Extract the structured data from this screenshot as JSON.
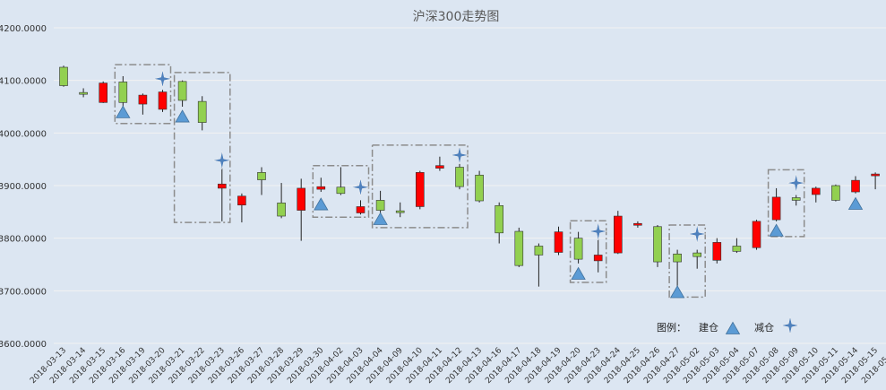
{
  "chart_data": {
    "type": "candlestick",
    "title": "沪深300走势图",
    "xlabel": "",
    "ylabel": "",
    "ylim": [
      3600,
      4200
    ],
    "yticks": [
      "3600.0000",
      "3700.0000",
      "3800.0000",
      "3900.0000",
      "4000.0000",
      "4100.0000",
      "4200.0000"
    ],
    "grid": true,
    "legend": {
      "position": "bottom-right",
      "title": "图例：",
      "entries": [
        "建仓",
        "减仓"
      ]
    },
    "colors": {
      "up": "#ff0000",
      "down": "#92d050",
      "build_marker": "#5b9bd5",
      "reduce_marker": "#4f81bd",
      "box": "#8c8c8c",
      "background": "#dce6f2"
    },
    "categories": [
      "2018-03-13",
      "2018-03-14",
      "2018-03-15",
      "2018-03-16",
      "2018-03-19",
      "2018-03-20",
      "2018-03-21",
      "2018-03-22",
      "2018-03-23",
      "2018-03-26",
      "2018-03-27",
      "2018-03-28",
      "2018-03-29",
      "2018-03-30",
      "2018-04-02",
      "2018-04-03",
      "2018-04-04",
      "2018-04-09",
      "2018-04-10",
      "2018-04-11",
      "2018-04-12",
      "2018-04-13",
      "2018-04-16",
      "2018-04-17",
      "2018-04-18",
      "2018-04-19",
      "2018-04-20",
      "2018-04-23",
      "2018-04-24",
      "2018-04-25",
      "2018-04-26",
      "2018-04-27",
      "2018-05-02",
      "2018-05-03",
      "2018-05-04",
      "2018-05-07",
      "2018-05-08",
      "2018-05-09",
      "2018-05-10",
      "2018-05-11",
      "2018-05-14",
      "2018-05-15",
      "2018-05-16"
    ],
    "candles": [
      {
        "open": 4125,
        "close": 4090,
        "high": 4128,
        "low": 4088
      },
      {
        "open": 4077,
        "close": 4074,
        "high": 4085,
        "low": 4068
      },
      {
        "open": 4058,
        "close": 4095,
        "high": 4098,
        "low": 4057
      },
      {
        "open": 4097,
        "close": 4058,
        "high": 4108,
        "low": 4050
      },
      {
        "open": 4055,
        "close": 4072,
        "high": 4075,
        "low": 4035
      },
      {
        "open": 4045,
        "close": 4078,
        "high": 4082,
        "low": 4040
      },
      {
        "open": 4098,
        "close": 4062,
        "high": 4100,
        "low": 4050
      },
      {
        "open": 4060,
        "close": 4020,
        "high": 4070,
        "low": 4005
      },
      {
        "open": 3895,
        "close": 3903,
        "high": 3945,
        "low": 3832
      },
      {
        "open": 3863,
        "close": 3880,
        "high": 3885,
        "low": 3830
      },
      {
        "open": 3925,
        "close": 3911,
        "high": 3935,
        "low": 3882
      },
      {
        "open": 3867,
        "close": 3842,
        "high": 3905,
        "low": 3838
      },
      {
        "open": 3853,
        "close": 3895,
        "high": 3913,
        "low": 3795
      },
      {
        "open": 3893,
        "close": 3898,
        "high": 3915,
        "low": 3888
      },
      {
        "open": 3897,
        "close": 3885,
        "high": 3935,
        "low": 3882
      },
      {
        "open": 3848,
        "close": 3860,
        "high": 3872,
        "low": 3845
      },
      {
        "open": 3872,
        "close": 3853,
        "high": 3890,
        "low": 3848
      },
      {
        "open": 3852,
        "close": 3851,
        "high": 3868,
        "low": 3840
      },
      {
        "open": 3860,
        "close": 3925,
        "high": 3928,
        "low": 3855
      },
      {
        "open": 3933,
        "close": 3938,
        "high": 3955,
        "low": 3928
      },
      {
        "open": 3935,
        "close": 3898,
        "high": 3945,
        "low": 3893
      },
      {
        "open": 3920,
        "close": 3871,
        "high": 3928,
        "low": 3868
      },
      {
        "open": 3862,
        "close": 3810,
        "high": 3868,
        "low": 3790
      },
      {
        "open": 3813,
        "close": 3748,
        "high": 3820,
        "low": 3745
      },
      {
        "open": 3785,
        "close": 3768,
        "high": 3790,
        "low": 3708
      },
      {
        "open": 3773,
        "close": 3812,
        "high": 3822,
        "low": 3768
      },
      {
        "open": 3800,
        "close": 3760,
        "high": 3812,
        "low": 3752
      },
      {
        "open": 3757,
        "close": 3768,
        "high": 3800,
        "low": 3735
      },
      {
        "open": 3772,
        "close": 3842,
        "high": 3852,
        "low": 3770
      },
      {
        "open": 3825,
        "close": 3828,
        "high": 3832,
        "low": 3820
      },
      {
        "open": 3822,
        "close": 3755,
        "high": 3825,
        "low": 3745
      },
      {
        "open": 3770,
        "close": 3755,
        "high": 3778,
        "low": 3700
      },
      {
        "open": 3772,
        "close": 3765,
        "high": 3778,
        "low": 3742
      },
      {
        "open": 3758,
        "close": 3792,
        "high": 3800,
        "low": 3752
      },
      {
        "open": 3785,
        "close": 3775,
        "high": 3800,
        "low": 3772
      },
      {
        "open": 3782,
        "close": 3832,
        "high": 3835,
        "low": 3778
      },
      {
        "open": 3835,
        "close": 3878,
        "high": 3895,
        "low": 3832
      },
      {
        "open": 3877,
        "close": 3872,
        "high": 3882,
        "low": 3862
      },
      {
        "open": 3883,
        "close": 3895,
        "high": 3898,
        "low": 3868
      },
      {
        "open": 3900,
        "close": 3872,
        "high": 3902,
        "low": 3870
      },
      {
        "open": 3888,
        "close": 3910,
        "high": 3918,
        "low": 3885
      },
      {
        "open": 3920,
        "close": 3922,
        "high": 3925,
        "low": 3893
      },
      null
    ],
    "build_markers": [
      {
        "index": 3,
        "value": 4040
      },
      {
        "index": 6,
        "value": 4032
      },
      {
        "index": 13,
        "value": 3865
      },
      {
        "index": 16,
        "value": 3837
      },
      {
        "index": 26,
        "value": 3733
      },
      {
        "index": 31,
        "value": 3698
      },
      {
        "index": 36,
        "value": 3815
      },
      {
        "index": 40,
        "value": 3866
      }
    ],
    "reduce_markers": [
      {
        "index": 5,
        "value": 4103
      },
      {
        "index": 8,
        "value": 3948
      },
      {
        "index": 15,
        "value": 3897
      },
      {
        "index": 20,
        "value": 3958
      },
      {
        "index": 27,
        "value": 3813
      },
      {
        "index": 32,
        "value": 3808
      },
      {
        "index": 37,
        "value": 3905
      }
    ],
    "highlight_boxes": [
      {
        "from_index": 3,
        "to_index": 5,
        "ymin": 4018,
        "ymax": 4130
      },
      {
        "from_index": 6,
        "to_index": 8,
        "ymin": 3830,
        "ymax": 4115
      },
      {
        "from_index": 13,
        "to_index": 15,
        "ymin": 3840,
        "ymax": 3938
      },
      {
        "from_index": 16,
        "to_index": 20,
        "ymin": 3820,
        "ymax": 3977
      },
      {
        "from_index": 26,
        "to_index": 27,
        "ymin": 3716,
        "ymax": 3833
      },
      {
        "from_index": 31,
        "to_index": 32,
        "ymin": 3688,
        "ymax": 3825
      },
      {
        "from_index": 36,
        "to_index": 37,
        "ymin": 3803,
        "ymax": 3930
      }
    ]
  }
}
